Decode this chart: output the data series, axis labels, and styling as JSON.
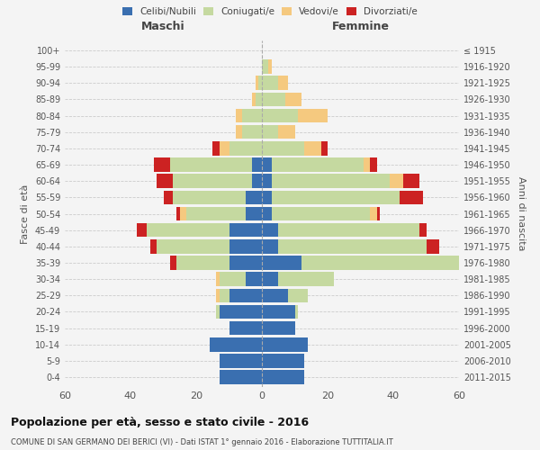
{
  "age_groups": [
    "0-4",
    "5-9",
    "10-14",
    "15-19",
    "20-24",
    "25-29",
    "30-34",
    "35-39",
    "40-44",
    "45-49",
    "50-54",
    "55-59",
    "60-64",
    "65-69",
    "70-74",
    "75-79",
    "80-84",
    "85-89",
    "90-94",
    "95-99",
    "100+"
  ],
  "birth_years": [
    "2011-2015",
    "2006-2010",
    "2001-2005",
    "1996-2000",
    "1991-1995",
    "1986-1990",
    "1981-1985",
    "1976-1980",
    "1971-1975",
    "1966-1970",
    "1961-1965",
    "1956-1960",
    "1951-1955",
    "1946-1950",
    "1941-1945",
    "1936-1940",
    "1931-1935",
    "1926-1930",
    "1921-1925",
    "1916-1920",
    "≤ 1915"
  ],
  "colors": {
    "celibe": "#3a6fb0",
    "coniugato": "#c5d9a0",
    "vedovo": "#f5c97f",
    "divorziato": "#cc2222"
  },
  "males": {
    "celibe": [
      13,
      13,
      16,
      10,
      13,
      10,
      5,
      10,
      10,
      10,
      5,
      5,
      3,
      3,
      0,
      0,
      0,
      0,
      0,
      0,
      0
    ],
    "coniugato": [
      0,
      0,
      0,
      0,
      1,
      3,
      8,
      16,
      22,
      25,
      18,
      22,
      24,
      25,
      10,
      6,
      6,
      2,
      1,
      0,
      0
    ],
    "vedovo": [
      0,
      0,
      0,
      0,
      0,
      1,
      1,
      0,
      0,
      0,
      2,
      0,
      0,
      0,
      3,
      2,
      2,
      1,
      1,
      0,
      0
    ],
    "divorziato": [
      0,
      0,
      0,
      0,
      0,
      0,
      0,
      2,
      2,
      3,
      1,
      3,
      5,
      5,
      2,
      0,
      0,
      0,
      0,
      0,
      0
    ]
  },
  "females": {
    "nubile": [
      13,
      13,
      14,
      10,
      10,
      8,
      5,
      12,
      5,
      5,
      3,
      3,
      3,
      3,
      0,
      0,
      0,
      0,
      0,
      0,
      0
    ],
    "coniugata": [
      0,
      0,
      0,
      0,
      1,
      6,
      17,
      48,
      45,
      43,
      30,
      39,
      36,
      28,
      13,
      5,
      11,
      7,
      5,
      2,
      0
    ],
    "vedova": [
      0,
      0,
      0,
      0,
      0,
      0,
      0,
      0,
      0,
      0,
      2,
      0,
      4,
      2,
      5,
      5,
      9,
      5,
      3,
      1,
      0
    ],
    "divorziata": [
      0,
      0,
      0,
      0,
      0,
      0,
      0,
      0,
      4,
      2,
      1,
      7,
      5,
      2,
      2,
      0,
      0,
      0,
      0,
      0,
      0
    ]
  },
  "xlim": 60,
  "title": "Popolazione per età, sesso e stato civile - 2016",
  "subtitle": "COMUNE DI SAN GERMANO DEI BERICI (VI) - Dati ISTAT 1° gennaio 2016 - Elaborazione TUTTITALIA.IT",
  "xlabel_left": "Maschi",
  "xlabel_right": "Femmine",
  "ylabel_left": "Fasce di età",
  "ylabel_right": "Anni di nascita",
  "bg_color": "#f4f4f4",
  "bar_height": 0.85
}
